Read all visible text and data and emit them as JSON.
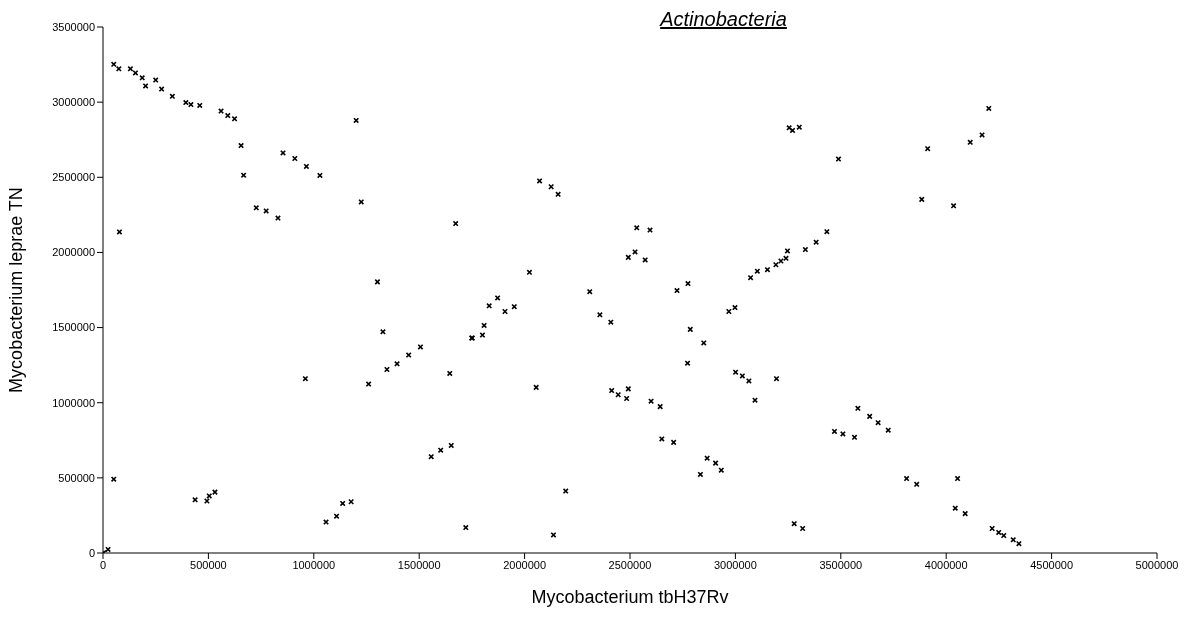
{
  "chart_data": {
    "type": "scatter",
    "title": "Actinobacteria",
    "xlabel": "Mycobacterium tbH37Rv",
    "ylabel": "Mycobacterium leprae TN",
    "color": "#000000",
    "marker": "cross",
    "grid": false,
    "legend": false,
    "xlim": [
      0,
      5000000
    ],
    "xticks": [
      0,
      500000,
      1000000,
      1500000,
      2000000,
      2500000,
      3000000,
      3500000,
      4000000,
      4500000,
      5000000
    ],
    "ylim": [
      0,
      3500000
    ],
    "yticks": [
      0,
      500000,
      1000000,
      1500000,
      2000000,
      2500000,
      3000000,
      3500000
    ],
    "x": [
      3000,
      24000,
      51000,
      75000,
      130000,
      154000,
      186000,
      202000,
      250000,
      278000,
      329000,
      393000,
      417000,
      459000,
      560000,
      592000,
      624000,
      1201000,
      655000,
      667000,
      854000,
      910000,
      965000,
      1029000,
      1225000,
      727000,
      774000,
      830000,
      78000,
      1673000,
      1302000,
      51000,
      437000,
      493000,
      504000,
      531000,
      960000,
      1058000,
      1108000,
      1137000,
      1177000,
      1260000,
      1328000,
      1347000,
      1395000,
      1450000,
      1506000,
      1645000,
      1557000,
      1602000,
      1652000,
      1721000,
      1749000,
      2071000,
      2126000,
      2159000,
      3255000,
      3271000,
      3303000,
      3489000,
      2532000,
      2595000,
      2492000,
      2524000,
      2572000,
      2023000,
      1832000,
      1872000,
      1907000,
      1951000,
      1808000,
      1752000,
      1800000,
      2309000,
      2723000,
      2775000,
      3072000,
      3104000,
      3152000,
      3192000,
      3216000,
      3240000,
      3247000,
      3332000,
      3383000,
      3434000,
      2357000,
      2409000,
      2786000,
      2850000,
      2969000,
      2998000,
      2773000,
      2055000,
      2413000,
      2444000,
      2484000,
      2492000,
      2600000,
      2643000,
      2651000,
      2707000,
      3001000,
      3033000,
      3064000,
      3093000,
      3195000,
      2834000,
      2866000,
      2906000,
      2933000,
      3279000,
      3319000,
      2195000,
      2137000,
      3470000,
      3510000,
      3565000,
      3581000,
      3637000,
      3677000,
      3725000,
      3812000,
      3860000,
      4054000,
      4043000,
      4090000,
      4218000,
      4249000,
      4273000,
      4318000,
      4345000,
      4202000,
      4114000,
      4170000,
      3912000,
      3884000,
      4035000
    ],
    "values": [
      2000,
      24000,
      3252000,
      3222000,
      3222000,
      3194000,
      3162000,
      3108000,
      3147000,
      3087000,
      3039000,
      2997000,
      2984000,
      2978000,
      2941000,
      2911000,
      2889000,
      2878000,
      2711000,
      2514000,
      2662000,
      2625000,
      2572000,
      2512000,
      2336000,
      2297000,
      2276000,
      2229000,
      2136000,
      2192000,
      1804000,
      491000,
      354000,
      346000,
      380000,
      405000,
      1160000,
      206000,
      245000,
      330000,
      341000,
      1124000,
      1472000,
      1221000,
      1259000,
      1317000,
      1371000,
      1195000,
      641000,
      684000,
      716000,
      169000,
      1430000,
      2476000,
      2437000,
      2387000,
      2829000,
      2812000,
      2833000,
      2621000,
      2164000,
      2149000,
      1967000,
      2003000,
      1950000,
      1868000,
      1645000,
      1697000,
      1607000,
      1639000,
      1514000,
      1430000,
      1450000,
      1739000,
      1746000,
      1793000,
      1832000,
      1875000,
      1885000,
      1918000,
      1943000,
      1961000,
      2010000,
      2019000,
      2068000,
      2138000,
      1585000,
      1536000,
      1488000,
      1398000,
      1607000,
      1633000,
      1263000,
      1102000,
      1081000,
      1053000,
      1028000,
      1092000,
      1010000,
      974000,
      759000,
      736000,
      1203000,
      1178000,
      1145000,
      1017000,
      1160000,
      523000,
      631000,
      598000,
      551000,
      195000,
      163000,
      412000,
      120000,
      809000,
      792000,
      770000,
      963000,
      909000,
      867000,
      817000,
      495000,
      457000,
      495000,
      298000,
      262000,
      163000,
      137000,
      116000,
      88000,
      62000,
      2958000,
      2733000,
      2782000,
      2690000,
      2353000,
      2310000
    ]
  }
}
